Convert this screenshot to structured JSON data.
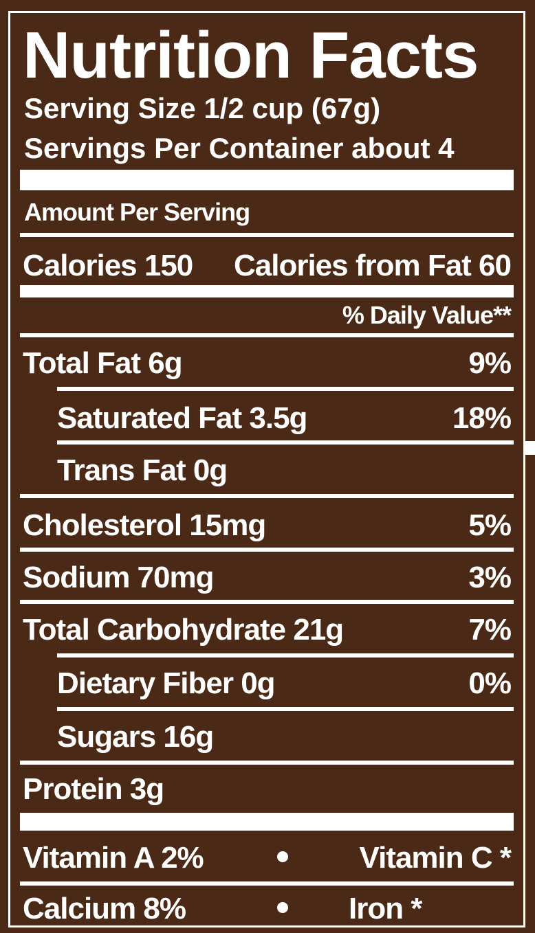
{
  "title": "Nutrition Facts",
  "serving_size": "Serving Size 1/2 cup (67g)",
  "servings_per_container": "Servings Per Container about 4",
  "amount_per_serving": "Amount Per Serving",
  "calories": "Calories 150",
  "calories_from_fat": "Calories from Fat 60",
  "daily_value_header": "% Daily Value**",
  "nutrients": [
    {
      "label": "Total Fat 6g",
      "dv": "9%"
    },
    {
      "label": "Saturated Fat 3.5g",
      "dv": "18%"
    },
    {
      "label": "Trans Fat 0g",
      "dv": ""
    },
    {
      "label": "Cholesterol 15mg",
      "dv": "5%"
    },
    {
      "label": "Sodium 70mg",
      "dv": "3%"
    },
    {
      "label": "Total Carbohydrate 21g",
      "dv": "7%"
    },
    {
      "label": "Dietary Fiber 0g",
      "dv": "0%"
    },
    {
      "label": "Sugars 16g",
      "dv": ""
    },
    {
      "label": "Protein 3g",
      "dv": ""
    }
  ],
  "vitamins": {
    "vitamin_a": "Vitamin A 2%",
    "vitamin_c": "Vitamin C *",
    "calcium": "Calcium 8%",
    "iron": "Iron *"
  }
}
